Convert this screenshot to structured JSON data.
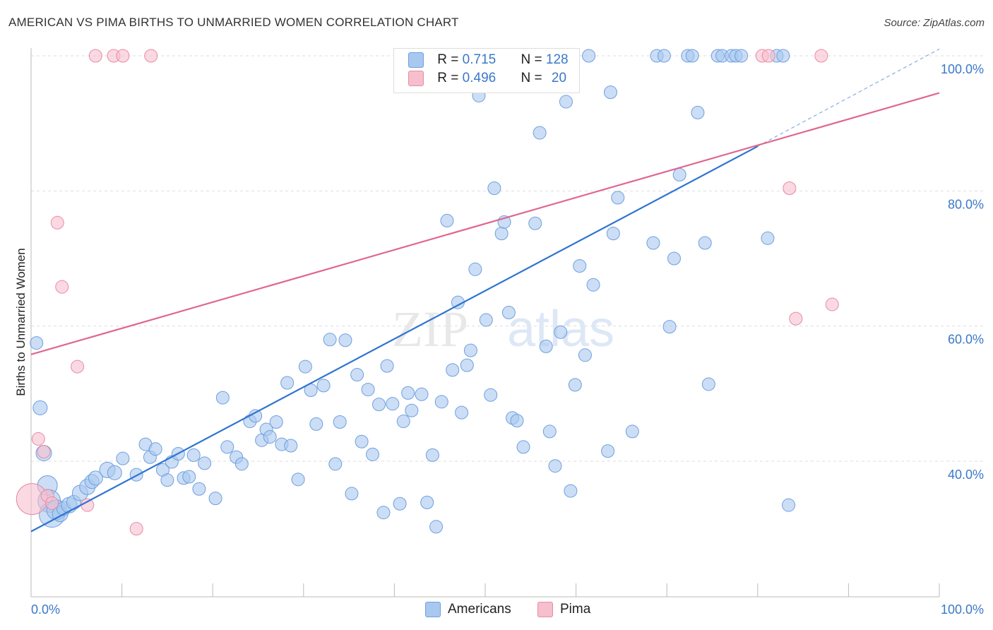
{
  "title": "AMERICAN VS PIMA BIRTHS TO UNMARRIED WOMEN CORRELATION CHART",
  "source": "Source: ZipAtlas.com",
  "watermark": {
    "zip": "ZIP",
    "atlas": "atlas"
  },
  "legend_top": [
    {
      "name": "Americans",
      "r_label": "R =",
      "r_value": "0.715",
      "n_label": "N =",
      "n_value": "128"
    },
    {
      "name": "Pima",
      "r_label": "R =",
      "r_value": "0.496",
      "n_label": "N =",
      "n_value": "20"
    }
  ],
  "legend_bottom": [
    "Americans",
    "Pima"
  ],
  "colors": {
    "americans_fill": "#a9c8f0",
    "americans_stroke": "#6f9fdc",
    "americans_line": "#2f74d0",
    "pima_fill": "#f6bfce",
    "pima_stroke": "#e88aa6",
    "pima_line": "#e06690",
    "axis_label": "#3a78c9",
    "grid": "#dddddd"
  },
  "chart_data": {
    "type": "scatter",
    "title": "AMERICAN VS PIMA BIRTHS TO UNMARRIED WOMEN CORRELATION CHART",
    "xlabel": "",
    "ylabel": "Births to Unmarried Women",
    "xlim": [
      0,
      100
    ],
    "ylim": [
      20,
      100
    ],
    "x_tick_labels": [
      "0.0%",
      "100.0%"
    ],
    "y_ticks": [
      {
        "value": 40,
        "label": "40.0%"
      },
      {
        "value": 60,
        "label": "60.0%"
      },
      {
        "value": 80,
        "label": "80.0%"
      },
      {
        "value": 100,
        "label": "100.0%"
      }
    ],
    "series": [
      {
        "name": "Americans",
        "points": [
          [
            0.6,
            57.5,
            9
          ],
          [
            1.0,
            47.9,
            10
          ],
          [
            1.4,
            41.2,
            11
          ],
          [
            1.8,
            36.4,
            14
          ],
          [
            2.0,
            34.1,
            16
          ],
          [
            2.3,
            32.1,
            18
          ],
          [
            2.8,
            32.8,
            14
          ],
          [
            3.2,
            32.2,
            11
          ],
          [
            3.6,
            33.0,
            10
          ],
          [
            4.2,
            33.5,
            11
          ],
          [
            4.7,
            33.9,
            10
          ],
          [
            5.4,
            35.3,
            11
          ],
          [
            6.2,
            36.2,
            11
          ],
          [
            6.7,
            37.0,
            10
          ],
          [
            7.1,
            37.5,
            10
          ],
          [
            8.4,
            38.7,
            11
          ],
          [
            9.2,
            38.3,
            10
          ],
          [
            10.1,
            40.4,
            9
          ],
          [
            11.6,
            38.0,
            9
          ],
          [
            12.6,
            42.5,
            9
          ],
          [
            13.1,
            40.6,
            9
          ],
          [
            13.7,
            41.8,
            9
          ],
          [
            14.5,
            38.7,
            9
          ],
          [
            15.0,
            37.2,
            9
          ],
          [
            15.5,
            39.9,
            9
          ],
          [
            16.2,
            41.1,
            9
          ],
          [
            16.8,
            37.5,
            9
          ],
          [
            17.4,
            37.7,
            9
          ],
          [
            17.9,
            40.9,
            9
          ],
          [
            18.5,
            35.9,
            9
          ],
          [
            19.1,
            39.7,
            9
          ],
          [
            20.3,
            34.5,
            9
          ],
          [
            21.1,
            49.4,
            9
          ],
          [
            21.6,
            42.1,
            9
          ],
          [
            22.6,
            40.6,
            9
          ],
          [
            23.2,
            39.6,
            9
          ],
          [
            24.1,
            45.9,
            9
          ],
          [
            24.7,
            46.7,
            9
          ],
          [
            25.4,
            43.1,
            9
          ],
          [
            25.9,
            44.7,
            9
          ],
          [
            26.3,
            43.6,
            9
          ],
          [
            27.0,
            45.8,
            9
          ],
          [
            27.6,
            42.5,
            9
          ],
          [
            28.2,
            51.6,
            9
          ],
          [
            28.6,
            42.3,
            9
          ],
          [
            29.4,
            37.3,
            9
          ],
          [
            30.2,
            54.0,
            9
          ],
          [
            30.8,
            50.5,
            9
          ],
          [
            31.4,
            45.5,
            9
          ],
          [
            32.2,
            51.2,
            9
          ],
          [
            32.9,
            58.0,
            9
          ],
          [
            33.5,
            39.6,
            9
          ],
          [
            34.0,
            45.8,
            9
          ],
          [
            34.6,
            57.9,
            9
          ],
          [
            35.3,
            35.2,
            9
          ],
          [
            35.9,
            52.8,
            9
          ],
          [
            36.4,
            42.9,
            9
          ],
          [
            37.1,
            50.6,
            9
          ],
          [
            37.6,
            41.0,
            9
          ],
          [
            38.3,
            48.4,
            9
          ],
          [
            38.8,
            32.4,
            9
          ],
          [
            39.2,
            54.1,
            9
          ],
          [
            39.8,
            48.5,
            9
          ],
          [
            40.6,
            33.7,
            9
          ],
          [
            41.0,
            45.9,
            9
          ],
          [
            41.5,
            50.1,
            9
          ],
          [
            41.9,
            47.5,
            9
          ],
          [
            43.0,
            49.9,
            9
          ],
          [
            43.6,
            33.9,
            9
          ],
          [
            44.2,
            40.9,
            9
          ],
          [
            44.6,
            30.3,
            9
          ],
          [
            45.2,
            48.8,
            9
          ],
          [
            45.8,
            75.6,
            9
          ],
          [
            46.4,
            53.5,
            9
          ],
          [
            47.0,
            63.5,
            9
          ],
          [
            47.4,
            47.2,
            9
          ],
          [
            48.0,
            54.2,
            9
          ],
          [
            48.4,
            56.4,
            9
          ],
          [
            48.9,
            68.4,
            9
          ],
          [
            49.3,
            94.1,
            9
          ],
          [
            50.1,
            60.9,
            9
          ],
          [
            50.6,
            49.8,
            9
          ],
          [
            51.0,
            80.4,
            9
          ],
          [
            51.8,
            73.7,
            9
          ],
          [
            52.1,
            75.4,
            9
          ],
          [
            52.6,
            62.0,
            9
          ],
          [
            53.0,
            46.4,
            9
          ],
          [
            53.5,
            46.0,
            9
          ],
          [
            54.2,
            42.1,
            9
          ],
          [
            55.5,
            75.2,
            9
          ],
          [
            56.0,
            88.6,
            9
          ],
          [
            56.7,
            57.0,
            9
          ],
          [
            57.1,
            44.4,
            9
          ],
          [
            57.7,
            39.3,
            9
          ],
          [
            58.3,
            59.1,
            9
          ],
          [
            58.9,
            93.2,
            9
          ],
          [
            59.4,
            35.6,
            9
          ],
          [
            59.9,
            51.3,
            9
          ],
          [
            60.4,
            68.9,
            9
          ],
          [
            61.0,
            55.7,
            9
          ],
          [
            61.4,
            100.0,
            9
          ],
          [
            61.9,
            66.1,
            9
          ],
          [
            63.5,
            41.5,
            9
          ],
          [
            63.8,
            94.6,
            9
          ],
          [
            64.1,
            73.7,
            9
          ],
          [
            64.6,
            79.0,
            9
          ],
          [
            66.2,
            44.4,
            9
          ],
          [
            68.5,
            72.3,
            9
          ],
          [
            68.9,
            100.0,
            9
          ],
          [
            69.7,
            100.0,
            9
          ],
          [
            70.3,
            59.9,
            9
          ],
          [
            70.8,
            70.0,
            9
          ],
          [
            71.4,
            82.4,
            9
          ],
          [
            72.3,
            100.0,
            9
          ],
          [
            72.8,
            100.0,
            9
          ],
          [
            73.4,
            91.6,
            9
          ],
          [
            74.2,
            72.3,
            9
          ],
          [
            74.6,
            51.4,
            9
          ],
          [
            75.6,
            100.0,
            9
          ],
          [
            76.1,
            100.0,
            9
          ],
          [
            77.1,
            100.0,
            9
          ],
          [
            77.6,
            100.0,
            9
          ],
          [
            78.2,
            100.0,
            9
          ],
          [
            81.1,
            73.0,
            9
          ],
          [
            82.1,
            100.0,
            9
          ],
          [
            82.8,
            100.0,
            9
          ],
          [
            83.4,
            33.5,
            9
          ]
        ]
      },
      {
        "name": "Pima",
        "points": [
          [
            0.1,
            34.4,
            22
          ],
          [
            0.8,
            43.3,
            9
          ],
          [
            1.4,
            41.4,
            9
          ],
          [
            1.8,
            34.9,
            9
          ],
          [
            2.3,
            33.8,
            9
          ],
          [
            2.9,
            75.3,
            9
          ],
          [
            3.4,
            65.8,
            9
          ],
          [
            5.1,
            54.0,
            9
          ],
          [
            6.2,
            33.5,
            9
          ],
          [
            7.1,
            100.0,
            9
          ],
          [
            9.1,
            100.0,
            9
          ],
          [
            10.1,
            100.0,
            9
          ],
          [
            11.6,
            30.0,
            9
          ],
          [
            13.2,
            100.0,
            9
          ],
          [
            80.5,
            100.0,
            9
          ],
          [
            81.2,
            100.0,
            9
          ],
          [
            83.5,
            80.4,
            9
          ],
          [
            84.2,
            61.1,
            9
          ],
          [
            87.0,
            100.0,
            9
          ],
          [
            88.2,
            63.2,
            9
          ]
        ]
      }
    ],
    "trend_lines": [
      {
        "name": "Americans",
        "x0": 0,
        "y0": 29.6,
        "x1": 80,
        "y1": 86.6,
        "dashed_to_x": 100,
        "dashed_to_y": 101
      },
      {
        "name": "Pima",
        "x0": 0,
        "y0": 55.8,
        "x1": 100,
        "y1": 94.5
      }
    ]
  }
}
